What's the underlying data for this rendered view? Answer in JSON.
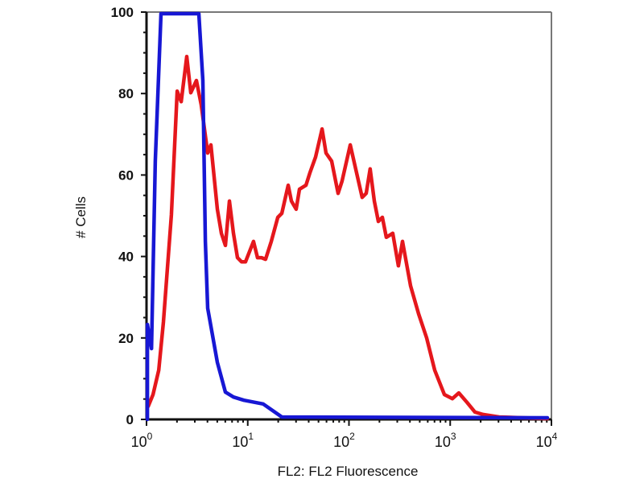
{
  "chart_data": {
    "type": "line",
    "title": "",
    "xlabel": "FL2: FL2 Fluorescence",
    "ylabel": "# Cells",
    "xscale": "log",
    "xlim": [
      1,
      10000
    ],
    "ylim": [
      0,
      100
    ],
    "grid": false,
    "x_ticks": [
      {
        "base": "10",
        "exp": "0",
        "value": 1
      },
      {
        "base": "10",
        "exp": "1",
        "value": 10
      },
      {
        "base": "10",
        "exp": "2",
        "value": 100
      },
      {
        "base": "10",
        "exp": "3",
        "value": 1000
      },
      {
        "base": "10",
        "exp": "4",
        "value": 10000
      }
    ],
    "y_ticks": [
      "0",
      "20",
      "40",
      "60",
      "80",
      "100"
    ],
    "series": [
      {
        "color": "#e5171c",
        "points": [
          [
            1.04,
            3.2
          ],
          [
            1.16,
            6.1
          ],
          [
            1.32,
            12.1
          ],
          [
            1.47,
            23.9
          ],
          [
            1.76,
            50.2
          ],
          [
            2.01,
            80.6
          ],
          [
            2.2,
            78
          ],
          [
            2.5,
            89.1
          ],
          [
            2.74,
            80.2
          ],
          [
            3.11,
            83.2
          ],
          [
            3.47,
            77.3
          ],
          [
            4.02,
            65.4
          ],
          [
            4.33,
            67.4
          ],
          [
            5.01,
            51.6
          ],
          [
            5.49,
            45.7
          ],
          [
            6.02,
            42.7
          ],
          [
            6.59,
            53.6
          ],
          [
            7.22,
            45.7
          ],
          [
            7.92,
            39.7
          ],
          [
            8.68,
            38.7
          ],
          [
            9.51,
            38.7
          ],
          [
            11.4,
            43.7
          ],
          [
            12.5,
            39.7
          ],
          [
            13.7,
            39.7
          ],
          [
            15.0,
            39.3
          ],
          [
            17.1,
            43.7
          ],
          [
            19.8,
            49.6
          ],
          [
            21.7,
            50.6
          ],
          [
            25.1,
            57.5
          ],
          [
            27.0,
            53.6
          ],
          [
            30.1,
            51.6
          ],
          [
            32.4,
            56.5
          ],
          [
            37.6,
            57.5
          ],
          [
            41.1,
            60.5
          ],
          [
            46.8,
            64.4
          ],
          [
            54.2,
            71.3
          ],
          [
            59.3,
            65.4
          ],
          [
            67.5,
            63.4
          ],
          [
            78.1,
            55.5
          ],
          [
            85.5,
            58.5
          ],
          [
            103,
            67.4
          ],
          [
            119,
            60.5
          ],
          [
            135,
            54.5
          ],
          [
            148,
            55.5
          ],
          [
            162,
            61.5
          ],
          [
            178,
            53.6
          ],
          [
            195,
            48.6
          ],
          [
            214,
            49.6
          ],
          [
            234,
            44.7
          ],
          [
            271,
            45.7
          ],
          [
            308,
            37.7
          ],
          [
            338,
            43.7
          ],
          [
            406,
            32.8
          ],
          [
            487,
            25.9
          ],
          [
            585,
            20.0
          ],
          [
            703,
            12.1
          ],
          [
            876,
            6.1
          ],
          [
            1052,
            5.1
          ],
          [
            1217,
            6.5
          ],
          [
            1462,
            4.2
          ],
          [
            1757,
            1.8
          ],
          [
            2110,
            1.2
          ],
          [
            3040,
            0.6
          ],
          [
            9120,
            0.2
          ]
        ]
      },
      {
        "color": "#1717d4",
        "points": [
          [
            1.02,
            0
          ],
          [
            1.02,
            23.3
          ],
          [
            1.12,
            17.4
          ],
          [
            1.22,
            63.4
          ],
          [
            1.39,
            99.6
          ],
          [
            3.29,
            99.6
          ],
          [
            3.6,
            83.2
          ],
          [
            3.81,
            43.7
          ],
          [
            4.02,
            27.3
          ],
          [
            5.01,
            14.0
          ],
          [
            6.02,
            6.7
          ],
          [
            7.22,
            5.5
          ],
          [
            9.17,
            4.7
          ],
          [
            14.2,
            3.8
          ],
          [
            21.7,
            0.6
          ],
          [
            9120,
            0.4
          ]
        ]
      }
    ]
  }
}
